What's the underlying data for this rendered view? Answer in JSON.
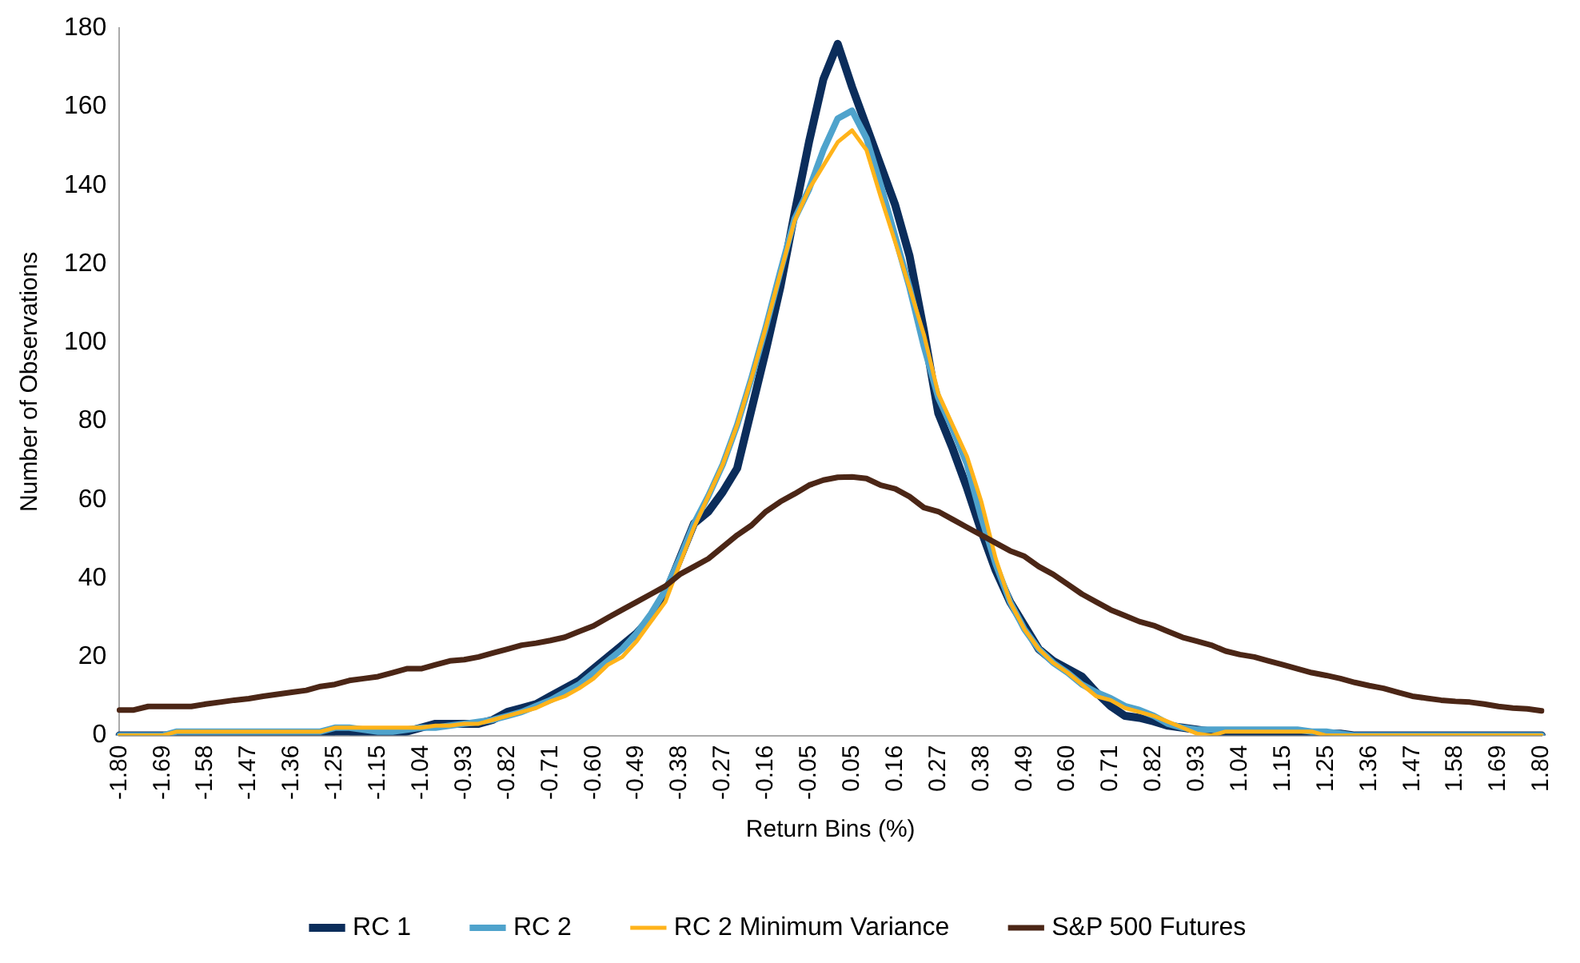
{
  "chart_data": {
    "type": "line",
    "xlabel": "Return Bins (%)",
    "ylabel": "Number of Observations",
    "categories": [
      "-1.80",
      null,
      null,
      "-1.69",
      null,
      null,
      "-1.58",
      null,
      null,
      "-1.47",
      null,
      null,
      "-1.36",
      null,
      null,
      "-1.25",
      null,
      null,
      "-1.15",
      null,
      null,
      "-1.04",
      null,
      null,
      "-0.93",
      null,
      null,
      "-0.82",
      null,
      null,
      "-0.71",
      null,
      null,
      "-0.60",
      null,
      null,
      "-0.49",
      null,
      null,
      "-0.38",
      null,
      null,
      "-0.27",
      null,
      null,
      "-0.16",
      null,
      null,
      "-0.05",
      null,
      null,
      "0.05",
      null,
      null,
      "0.16",
      null,
      null,
      "0.27",
      null,
      null,
      "0.38",
      null,
      null,
      "0.49",
      null,
      null,
      "0.60",
      null,
      null,
      "0.71",
      null,
      null,
      "0.82",
      null,
      null,
      "0.93",
      null,
      null,
      "1.04",
      null,
      null,
      "1.15",
      null,
      null,
      "1.25",
      null,
      null,
      "1.36",
      null,
      null,
      "1.47",
      null,
      null,
      "1.58",
      null,
      null,
      "1.69",
      null,
      null,
      "1.80"
    ],
    "series": [
      {
        "name": "RC 1",
        "color": "#0b2d5b",
        "values": [
          0,
          0,
          0,
          0,
          0,
          0,
          0,
          0,
          0,
          0,
          0,
          0,
          0,
          0,
          0,
          1,
          1,
          0.5,
          0,
          0.5,
          1,
          2,
          3,
          3,
          3,
          3,
          4,
          6,
          7,
          8,
          10,
          12,
          14,
          17,
          20,
          23,
          26,
          30,
          36,
          45,
          54,
          57,
          62,
          68,
          83,
          98,
          114,
          133,
          151,
          167,
          176,
          165,
          155,
          145,
          135,
          122,
          103,
          82,
          73,
          63,
          52,
          42,
          34,
          28,
          22,
          19,
          17,
          15,
          11,
          7.5,
          5,
          4.5,
          3.6,
          2.5,
          2,
          1.5,
          1,
          0.5,
          0.5,
          0.5,
          0.5,
          0.5,
          0.5,
          0.5,
          0.5,
          0.5,
          0,
          0,
          0,
          0,
          0,
          0,
          0,
          0,
          0,
          0,
          0,
          0,
          0,
          0
        ]
      },
      {
        "name": "RC 2",
        "color": "#4fa3cc",
        "values": [
          0,
          0,
          0,
          0,
          1,
          1,
          1,
          1,
          1,
          1,
          1,
          1,
          1,
          1,
          1,
          2,
          2,
          1.5,
          1,
          1,
          1.5,
          2,
          2,
          2.5,
          3,
          3.5,
          4,
          5,
          6,
          7.5,
          9,
          11,
          13,
          16,
          19,
          22,
          26,
          31,
          37,
          45,
          54,
          61,
          69,
          79,
          91,
          104,
          118,
          131.5,
          139,
          149,
          157,
          159,
          152,
          140,
          127,
          114,
          99,
          86,
          78,
          69,
          55.5,
          43.6,
          34,
          27,
          22,
          18.5,
          16,
          13,
          11,
          9.5,
          7.5,
          6.5,
          5,
          3,
          2,
          1.5,
          1.5,
          1.5,
          1.5,
          1.5,
          1.5,
          1.5,
          1.5,
          1,
          1,
          0.5,
          0,
          0,
          0,
          0,
          0,
          0,
          0,
          0,
          0,
          0,
          0,
          0,
          0,
          0
        ]
      },
      {
        "name": "RC 2 Minimum Variance",
        "color": "#ffb31a",
        "values": [
          0,
          0,
          0,
          0,
          1,
          1,
          1,
          1,
          1,
          1,
          1,
          1,
          1,
          1,
          1,
          2,
          2,
          2,
          2,
          2,
          2,
          2,
          2.5,
          2.5,
          3,
          3,
          4,
          5,
          6,
          7,
          8.7,
          10,
          12,
          14.5,
          18,
          20,
          24,
          29,
          34,
          43.6,
          53,
          61,
          69,
          79,
          91,
          104,
          117.6,
          131,
          139,
          145,
          151,
          154,
          149,
          137,
          125.6,
          114,
          102,
          87,
          79,
          71,
          59.5,
          45,
          34,
          27,
          22,
          18.5,
          16,
          13,
          10,
          9,
          7,
          6,
          5,
          3.5,
          2,
          0.5,
          0,
          1,
          1,
          1,
          1,
          1,
          1,
          1,
          0,
          0,
          0,
          0,
          0,
          0,
          0,
          0,
          0,
          0,
          0,
          0,
          0,
          0,
          0,
          0
        ]
      },
      {
        "name": "S&P 500 Futures",
        "color": "#4b2616",
        "values": [
          6.5,
          6.5,
          7.4,
          7.4,
          7.4,
          7.4,
          8,
          8.5,
          9,
          9.4,
          10,
          10.5,
          11,
          11.5,
          12.5,
          13,
          14,
          14.5,
          15,
          16,
          17,
          17,
          18,
          19,
          19.3,
          20,
          21,
          22,
          23,
          23.5,
          24.2,
          25,
          26.5,
          27.9,
          30,
          32,
          34,
          36,
          38,
          41,
          43,
          45,
          48,
          51,
          53.5,
          57,
          59.5,
          61.5,
          63.7,
          65,
          65.7,
          65.8,
          65.4,
          63.7,
          62.8,
          60.8,
          58,
          57,
          55,
          53,
          51,
          49,
          47,
          45.6,
          43,
          41,
          38.5,
          36,
          34,
          32,
          30.5,
          29,
          28,
          26.5,
          25,
          24,
          23,
          21.5,
          20.6,
          20,
          19,
          18,
          17,
          16,
          15.3,
          14.5,
          13.5,
          12.7,
          12,
          11,
          10,
          9.5,
          9,
          8.7,
          8.5,
          8,
          7.4,
          7,
          6.8,
          6.3
        ]
      }
    ],
    "ylim": [
      0,
      180
    ],
    "yticks": [
      0,
      20,
      40,
      60,
      80,
      100,
      120,
      140,
      160,
      180
    ],
    "grid": false,
    "legend": "bottom",
    "marker": "none",
    "line_style": "solid"
  }
}
